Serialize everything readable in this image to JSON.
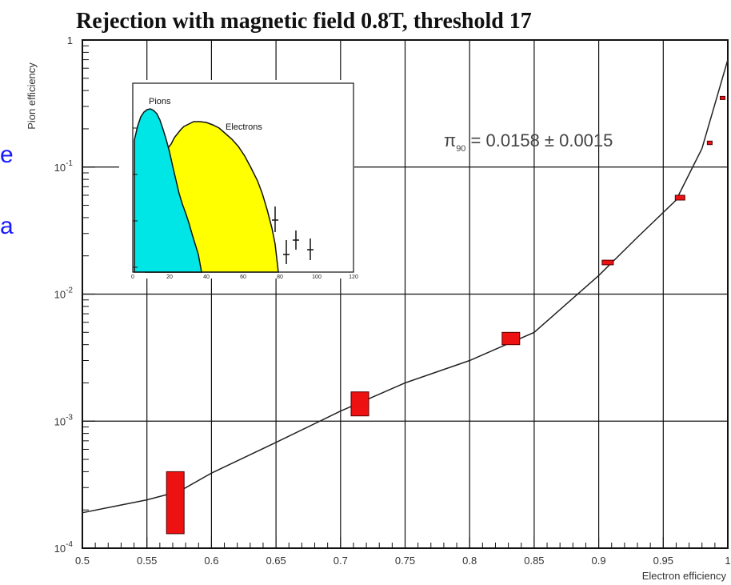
{
  "chart_data": [
    {
      "type": "scatter",
      "title": "Rejection with magnetic field 0.8T, threshold 17",
      "xlabel": "Electron efficiency",
      "ylabel": "Pion efficiency",
      "xlim": [
        0.5,
        1.0
      ],
      "ylim": [
        0.0001,
        1
      ],
      "yscale": "log",
      "grid": true,
      "x_ticks": [
        "0.5",
        "0.55",
        "0.6",
        "0.65",
        "0.7",
        "0.75",
        "0.8",
        "0.85",
        "0.9",
        "0.95",
        "1"
      ],
      "y_ticks": [
        "1",
        "10^-1",
        "10^-2",
        "10^-3",
        "10^-4"
      ],
      "annotation": {
        "symbol": "π",
        "subscript": "90",
        "text": " = 0.0158 ± 0.0015"
      },
      "points": [
        {
          "x": 0.572,
          "y_low": 0.00013,
          "y_high": 0.0004
        },
        {
          "x": 0.715,
          "y_low": 0.0011,
          "y_high": 0.0017
        },
        {
          "x": 0.832,
          "y_low": 0.004,
          "y_high": 0.005
        },
        {
          "x": 0.907,
          "y_low": 0.017,
          "y_high": 0.0185
        },
        {
          "x": 0.963,
          "y_low": 0.055,
          "y_high": 0.06
        },
        {
          "x": 0.986,
          "y_low": 0.15,
          "y_high": 0.16
        },
        {
          "x": 0.996,
          "y_low": 0.34,
          "y_high": 0.36
        }
      ],
      "fit_curve": {
        "x": [
          0.5,
          0.55,
          0.575,
          0.6,
          0.65,
          0.7,
          0.75,
          0.8,
          0.85,
          0.9,
          0.93,
          0.96,
          0.98,
          1.0
        ],
        "y": [
          0.00019,
          0.00024,
          0.00028,
          0.00039,
          0.00068,
          0.0012,
          0.002,
          0.003,
          0.005,
          0.014,
          0.028,
          0.055,
          0.14,
          0.7
        ]
      }
    },
    {
      "type": "area",
      "series": [
        {
          "name": "Pions",
          "color": "#00e5e5"
        },
        {
          "name": "Electrons",
          "color": "#ffff00"
        }
      ],
      "x_ticks": [
        "0",
        "20",
        "40",
        "60",
        "80",
        "100",
        "120"
      ]
    }
  ],
  "side_text": [
    "e",
    "a"
  ],
  "colors": {
    "marker": "#ee1111",
    "marker_border": "#550000",
    "grid": "#111111",
    "fit": "#222222",
    "side_text": "#1a1aff"
  }
}
